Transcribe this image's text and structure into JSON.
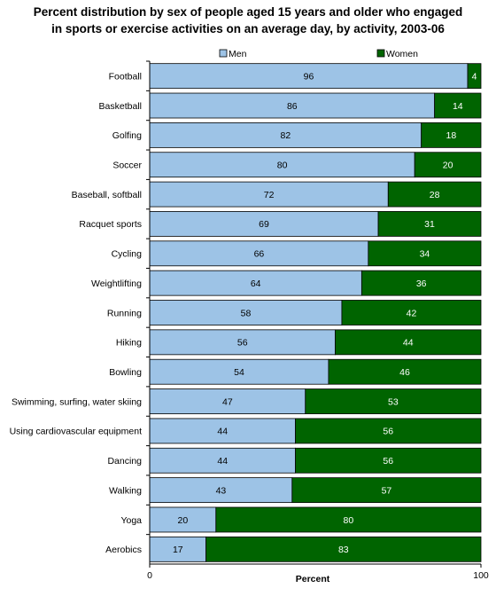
{
  "chart_data": {
    "type": "bar",
    "orientation": "horizontal",
    "stacked": true,
    "title": "Percent distribution by sex of people aged 15 years and older who engaged in sports or exercise activities on an average day, by activity,  2003-06",
    "title_lines": [
      "Percent distribution by sex of people aged 15 years and older who engaged",
      "in sports or exercise activities on an average day, by activity,  2003-06"
    ],
    "xlabel": "Percent",
    "ylabel": "",
    "xlim": [
      0,
      100
    ],
    "x_ticks": [
      0,
      100
    ],
    "grid": false,
    "legend_position": "top",
    "categories": [
      "Football",
      "Basketball",
      "Golfing",
      "Soccer",
      "Baseball, softball",
      "Racquet sports",
      "Cycling",
      "Weightlifting",
      "Running",
      "Hiking",
      "Bowling",
      "Swimming, surfing, water skiing",
      "Using cardiovascular equipment",
      "Dancing",
      "Walking",
      "Yoga",
      "Aerobics"
    ],
    "series": [
      {
        "name": "Men",
        "color": "#9DC3E6",
        "label_color": "#000000",
        "values": [
          96,
          86,
          82,
          80,
          72,
          69,
          66,
          64,
          58,
          56,
          54,
          47,
          44,
          44,
          43,
          20,
          17
        ]
      },
      {
        "name": "Women",
        "color": "#006400",
        "label_color": "#ffffff",
        "values": [
          4,
          14,
          18,
          20,
          28,
          31,
          34,
          36,
          42,
          44,
          46,
          53,
          56,
          56,
          57,
          80,
          83
        ]
      }
    ]
  }
}
